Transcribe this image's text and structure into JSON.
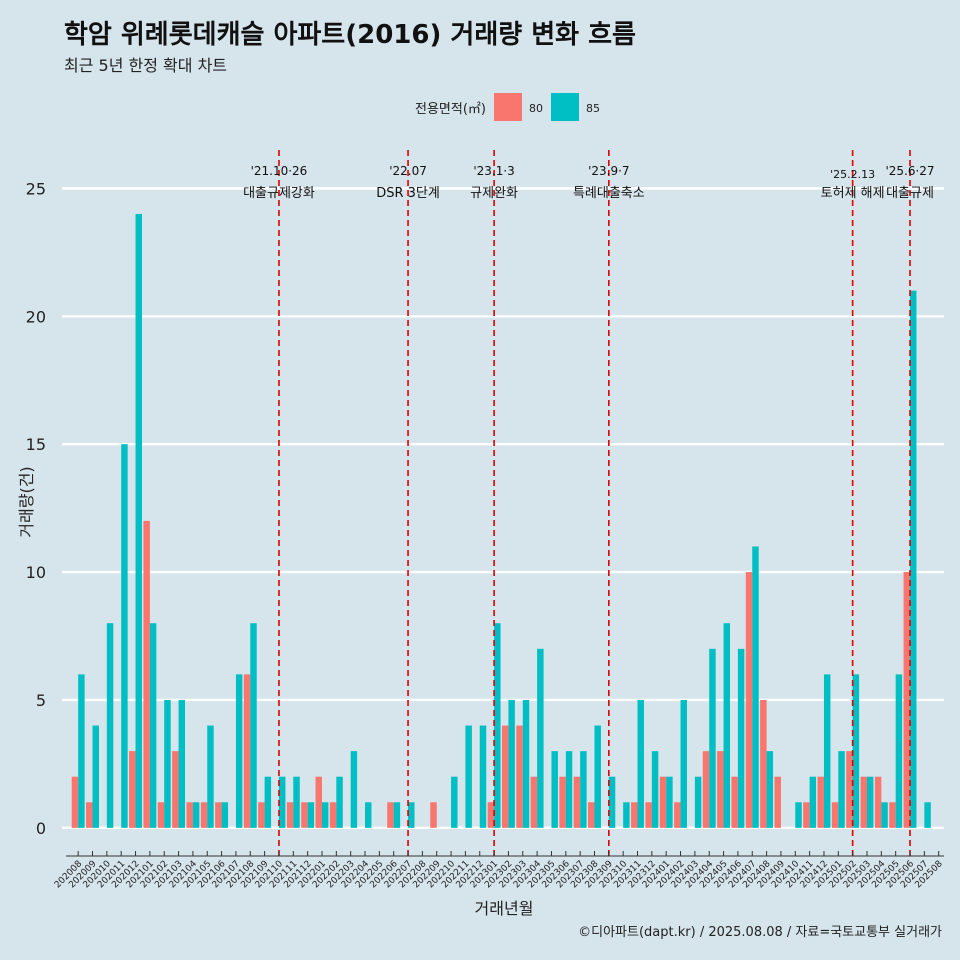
{
  "title": "학암 위례롯데캐슬 아파트(2016) 거래량 변화 흐름",
  "subtitle": "최근 5년 한정 확대 차트",
  "caption": "©디아파트(dapt.kr) / 2025.08.08 / 자료=국토교통부 실거래가",
  "colors": {
    "background": "#d6e4eb",
    "s80": "#f8766d",
    "s85": "#00bfc4",
    "vline": "#e00000",
    "grid": "#ffffff"
  },
  "chart_data": {
    "type": "bar",
    "title": "학암 위례롯데캐슬 아파트(2016) 거래량 변화 흐름",
    "subtitle": "최근 5년 한정 확대 차트",
    "xlabel": "거래년월",
    "ylabel": "거래량(건)",
    "ylim": [
      -1.1,
      26.5
    ],
    "yticks": [
      0,
      5,
      10,
      15,
      20,
      25
    ],
    "grid": true,
    "legend": {
      "title": "전용면적(㎡)",
      "position": "top",
      "entries": [
        "80",
        "85"
      ]
    },
    "categories": [
      "202008",
      "202009",
      "202010",
      "202011",
      "202012",
      "202101",
      "202102",
      "202103",
      "202104",
      "202105",
      "202106",
      "202107",
      "202108",
      "202109",
      "202110",
      "202111",
      "202112",
      "202201",
      "202202",
      "202203",
      "202204",
      "202205",
      "202206",
      "202207",
      "202208",
      "202209",
      "202210",
      "202211",
      "202212",
      "202301",
      "202302",
      "202303",
      "202304",
      "202305",
      "202306",
      "202307",
      "202308",
      "202309",
      "202310",
      "202311",
      "202312",
      "202401",
      "202402",
      "202403",
      "202404",
      "202405",
      "202406",
      "202407",
      "202408",
      "202409",
      "202410",
      "202411",
      "202412",
      "202501",
      "202502",
      "202503",
      "202504",
      "202505",
      "202506",
      "202507",
      "202508"
    ],
    "series": [
      {
        "name": "80",
        "values": [
          2,
          1,
          0,
          0,
          3,
          12,
          1,
          3,
          1,
          1,
          1,
          0,
          6,
          1,
          0,
          1,
          1,
          2,
          1,
          0,
          0,
          0,
          1,
          0,
          0,
          1,
          0,
          0,
          0,
          1,
          4,
          4,
          2,
          0,
          2,
          2,
          1,
          0,
          0,
          1,
          1,
          2,
          1,
          0,
          3,
          3,
          2,
          10,
          5,
          2,
          0,
          1,
          2,
          1,
          3,
          2,
          2,
          1,
          10,
          0,
          0
        ]
      },
      {
        "name": "85",
        "values": [
          6,
          4,
          8,
          15,
          24,
          8,
          5,
          5,
          1,
          4,
          1,
          6,
          8,
          2,
          2,
          2,
          1,
          1,
          2,
          3,
          1,
          0,
          1,
          1,
          0,
          0,
          2,
          4,
          4,
          8,
          5,
          5,
          7,
          3,
          3,
          3,
          4,
          2,
          1,
          5,
          3,
          2,
          5,
          2,
          7,
          8,
          7,
          11,
          3,
          0,
          1,
          2,
          6,
          3,
          6,
          2,
          1,
          6,
          21,
          1,
          0
        ]
      }
    ],
    "annotations": [
      {
        "category": "202110",
        "lines": [
          "'21.10·26",
          "대출규제강화"
        ]
      },
      {
        "category": "202207",
        "lines": [
          "'22.07",
          "DSR 3단계"
        ]
      },
      {
        "category": "202301",
        "lines": [
          "'23.1·3",
          "규제완화"
        ]
      },
      {
        "category": "202309",
        "lines": [
          "'23.9·7",
          "특례대출축소"
        ]
      },
      {
        "category": "202502",
        "lines": [
          "'25.2.13",
          "토허제 해제"
        ]
      },
      {
        "category": "202506",
        "lines": [
          "'25.6·27",
          "대출규제"
        ]
      }
    ]
  }
}
